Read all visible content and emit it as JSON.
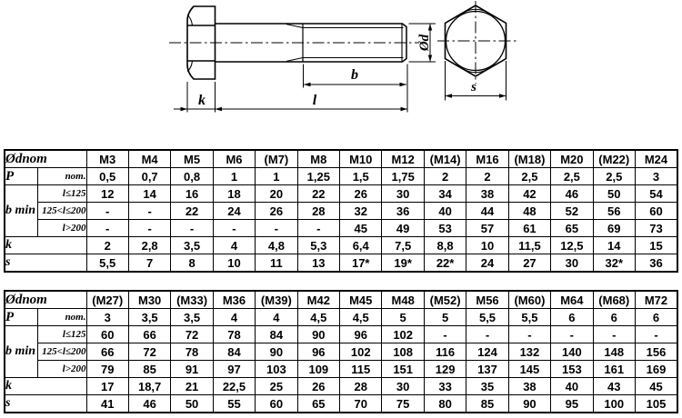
{
  "drawing": {
    "dim_labels": {
      "diameter": "Ød",
      "thread_length": "b",
      "head_height": "k",
      "length": "l",
      "width_across_flats": "s"
    }
  },
  "tables": [
    {
      "corner_label": "Ødnom",
      "columns": [
        "M3",
        "M4",
        "M5",
        "M6",
        "(M7)",
        "M8",
        "M10",
        "M12",
        "(M14)",
        "M16",
        "(M18)",
        "M20",
        "(M22)",
        "M24"
      ],
      "p_row": {
        "label": "P",
        "sublabel": "nom.",
        "values": [
          "0,5",
          "0,7",
          "0,8",
          "1",
          "1",
          "1,25",
          "1,5",
          "1,75",
          "2",
          "2",
          "2,5",
          "2,5",
          "2,5",
          "3"
        ]
      },
      "bmin_row": {
        "label": "b min",
        "subrows": [
          {
            "label": "l≤125",
            "values": [
              "12",
              "14",
              "16",
              "18",
              "20",
              "22",
              "26",
              "30",
              "34",
              "38",
              "42",
              "46",
              "50",
              "54"
            ]
          },
          {
            "label": "125<l≤200",
            "values": [
              "-",
              "-",
              "22",
              "24",
              "26",
              "28",
              "32",
              "36",
              "40",
              "44",
              "48",
              "52",
              "56",
              "60"
            ]
          },
          {
            "label": "l>200",
            "values": [
              "-",
              "-",
              "-",
              "-",
              "-",
              "-",
              "45",
              "49",
              "53",
              "57",
              "61",
              "65",
              "69",
              "73"
            ]
          }
        ]
      },
      "k_row": {
        "label": "k",
        "values": [
          "2",
          "2,8",
          "3,5",
          "4",
          "4,8",
          "5,3",
          "6,4",
          "7,5",
          "8,8",
          "10",
          "11,5",
          "12,5",
          "14",
          "15"
        ]
      },
      "s_row": {
        "label": "s",
        "values": [
          "5,5",
          "7",
          "8",
          "10",
          "11",
          "13",
          "17*",
          "19*",
          "22*",
          "24",
          "27",
          "30",
          "32*",
          "36"
        ]
      }
    },
    {
      "corner_label": "Ødnom",
      "columns": [
        "(M27)",
        "M30",
        "(M33)",
        "M36",
        "(M39)",
        "M42",
        "M45",
        "M48",
        "(M52)",
        "M56",
        "(M60)",
        "M64",
        "(M68)",
        "M72"
      ],
      "p_row": {
        "label": "P",
        "sublabel": "nom.",
        "values": [
          "3",
          "3,5",
          "3,5",
          "4",
          "4",
          "4,5",
          "4,5",
          "5",
          "5",
          "5,5",
          "5,5",
          "6",
          "6",
          "6"
        ]
      },
      "bmin_row": {
        "label": "b min",
        "subrows": [
          {
            "label": "l≤125",
            "values": [
              "60",
              "66",
              "72",
              "78",
              "84",
              "90",
              "96",
              "102",
              "-",
              "-",
              "-",
              "-",
              "-",
              "-"
            ]
          },
          {
            "label": "125<l≤200",
            "values": [
              "66",
              "72",
              "78",
              "84",
              "90",
              "96",
              "102",
              "108",
              "116",
              "124",
              "132",
              "140",
              "148",
              "156"
            ]
          },
          {
            "label": "l>200",
            "values": [
              "79",
              "85",
              "91",
              "97",
              "103",
              "109",
              "115",
              "151",
              "129",
              "137",
              "145",
              "153",
              "161",
              "169"
            ]
          }
        ]
      },
      "k_row": {
        "label": "k",
        "values": [
          "17",
          "18,7",
          "21",
          "22,5",
          "25",
          "26",
          "28",
          "30",
          "33",
          "35",
          "38",
          "40",
          "43",
          "45"
        ]
      },
      "s_row": {
        "label": "s",
        "values": [
          "41",
          "46",
          "50",
          "55",
          "60",
          "65",
          "70",
          "75",
          "80",
          "85",
          "90",
          "95",
          "100",
          "105"
        ]
      }
    }
  ]
}
